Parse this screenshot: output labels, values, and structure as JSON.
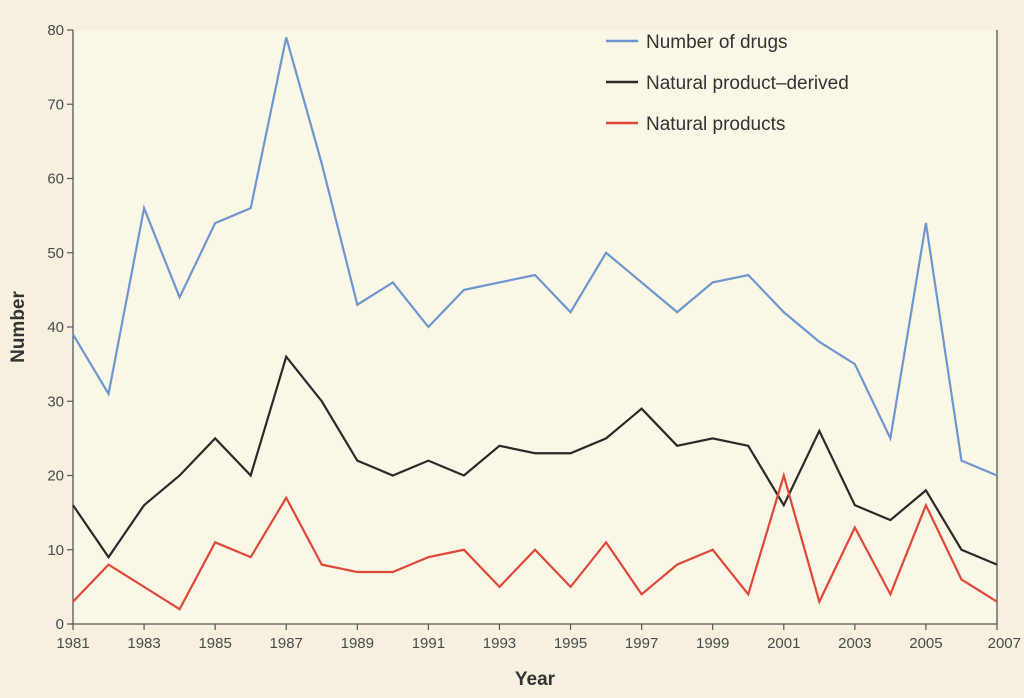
{
  "chart_data": {
    "type": "line",
    "title": "",
    "xlabel": "Year",
    "ylabel": "Number",
    "xlim": [
      1981,
      2007
    ],
    "ylim": [
      0,
      80
    ],
    "x_ticks": [
      "1981",
      "1983",
      "1985",
      "1987",
      "1989",
      "1991",
      "1993",
      "1995",
      "1997",
      "1999",
      "2001",
      "2003",
      "2005",
      "2007"
    ],
    "y_ticks": [
      "0",
      "10",
      "20",
      "30",
      "40",
      "50",
      "60",
      "70",
      "80"
    ],
    "grid": false,
    "legend_position": "top-right",
    "x": [
      1981,
      1982,
      1983,
      1984,
      1985,
      1986,
      1987,
      1988,
      1989,
      1990,
      1991,
      1992,
      1993,
      1994,
      1995,
      1996,
      1997,
      1998,
      1999,
      2000,
      2001,
      2002,
      2003,
      2004,
      2005,
      2006,
      2007
    ],
    "series": [
      {
        "name": "Number of drugs",
        "color": "#6d96cf",
        "values": [
          39,
          31,
          56,
          44,
          54,
          56,
          79,
          62,
          43,
          46,
          40,
          45,
          46,
          47,
          42,
          50,
          46,
          42,
          46,
          47,
          42,
          38,
          35,
          25,
          54,
          22,
          20
        ]
      },
      {
        "name": "Natural product–derived",
        "color": "#2a2a2a",
        "values": [
          16,
          9,
          16,
          20,
          25,
          20,
          36,
          30,
          22,
          20,
          22,
          20,
          24,
          23,
          23,
          25,
          29,
          24,
          25,
          24,
          16,
          26,
          16,
          14,
          18,
          10,
          8
        ]
      },
      {
        "name": "Natural products",
        "color": "#e0483a",
        "values": [
          3,
          8,
          5,
          2,
          11,
          9,
          17,
          8,
          7,
          7,
          9,
          10,
          5,
          10,
          5,
          11,
          4,
          8,
          10,
          4,
          20,
          3,
          13,
          4,
          16,
          6,
          3
        ]
      }
    ]
  }
}
